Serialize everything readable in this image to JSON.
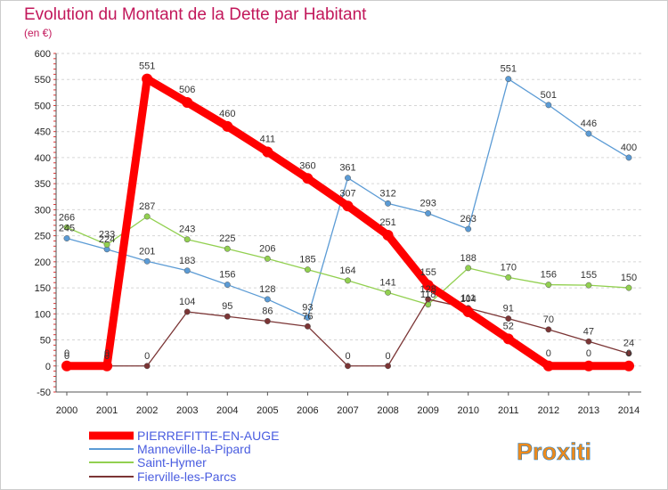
{
  "chart_data": {
    "type": "line",
    "title": "Evolution du Montant de la Dette par Habitant",
    "subtitle": "(en €)",
    "x": [
      "2000",
      "2001",
      "2002",
      "2003",
      "2004",
      "2005",
      "2006",
      "2007",
      "2008",
      "2009",
      "2010",
      "2011",
      "2012",
      "2013",
      "2014"
    ],
    "ylim": [
      -50,
      600
    ],
    "yticks": [
      -50,
      0,
      50,
      100,
      150,
      200,
      250,
      300,
      350,
      400,
      450,
      500,
      550,
      600
    ],
    "grid": "horizontal dashed",
    "legend_position": "bottom-left",
    "series": [
      {
        "name": "PIERREFITTE-EN-AUGE",
        "color": "#ff0000",
        "values": [
          0,
          0,
          551,
          506,
          460,
          411,
          360,
          307,
          251,
          155,
          104,
          52,
          0,
          0,
          0
        ]
      },
      {
        "name": "Manneville-la-Pipard",
        "color": "#5b9bd5",
        "values": [
          245,
          224,
          201,
          183,
          156,
          128,
          93,
          361,
          312,
          293,
          263,
          551,
          501,
          446,
          400
        ]
      },
      {
        "name": "Saint-Hymer",
        "color": "#92d050",
        "values": [
          266,
          233,
          287,
          243,
          225,
          206,
          185,
          164,
          141,
          118,
          188,
          170,
          156,
          155,
          150
        ]
      },
      {
        "name": "Fierville-les-Parcs",
        "color": "#7b3535",
        "values": [
          0,
          0,
          0,
          104,
          95,
          86,
          76,
          0,
          0,
          128,
          111,
          91,
          70,
          47,
          24
        ]
      }
    ]
  },
  "brand": {
    "logo_text": "Proxiti"
  }
}
